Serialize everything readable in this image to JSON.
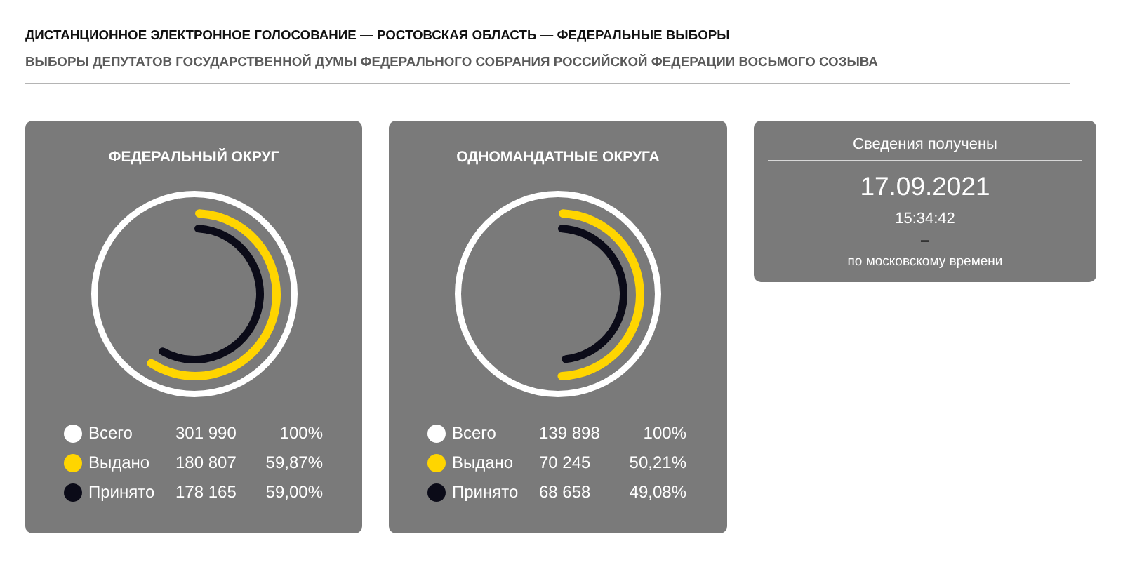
{
  "chart_data": [
    {
      "type": "other",
      "title": "ДИСТАНЦИОННОЕ ЭЛЕКТРОННОЕ ГОЛОСОВАНИЕ — РОСТОВСКАЯ ОБЛАСТЬ — ФЕДЕРАЛЬНЫЕ ВЫБОРЫ",
      "subtitle": "ВЫБОРЫ ДЕПУТАТОВ ГОСУДАРСТВЕННОЙ ДУМЫ ФЕДЕРАЛЬНОГО СОБРАНИЯ РОССИЙСКОЙ ФЕДЕРАЦИИ ВОСЬМОГО СОЗЫВА"
    },
    {
      "type": "other",
      "title": "ФЕДЕРАЛЬНЫЙ ОКРУГ",
      "categories": [
        "Всего",
        "Выдано",
        "Принято"
      ],
      "colors": [
        "#ffffff",
        "#ffd500",
        "#0b0b18"
      ],
      "series": [
        {
          "values": [
            301990,
            180807,
            178165
          ]
        },
        {
          "values": [
            100,
            59.87,
            59.0
          ],
          "value_labels": [
            "100%",
            "59,87%",
            "59,00%"
          ]
        }
      ],
      "data_labels": true
    },
    {
      "type": "other",
      "title": "ОДНОМАНДАТНЫЕ ОКРУГА",
      "categories": [
        "Всего",
        "Выдано",
        "Принято"
      ],
      "colors": [
        "#ffffff",
        "#ffd500",
        "#0b0b18"
      ],
      "series": [
        {
          "values": [
            139898,
            70245,
            68658
          ]
        },
        {
          "values": [
            100,
            50.21,
            49.08
          ],
          "value_labels": [
            "100%",
            "50,21%",
            "49,08%"
          ]
        }
      ],
      "data_labels": true
    },
    {
      "type": "other",
      "title": "Сведения получены",
      "annotations": [
        "17.09.2021",
        "15:34:42",
        "–",
        "по московскому времени"
      ]
    }
  ]
}
